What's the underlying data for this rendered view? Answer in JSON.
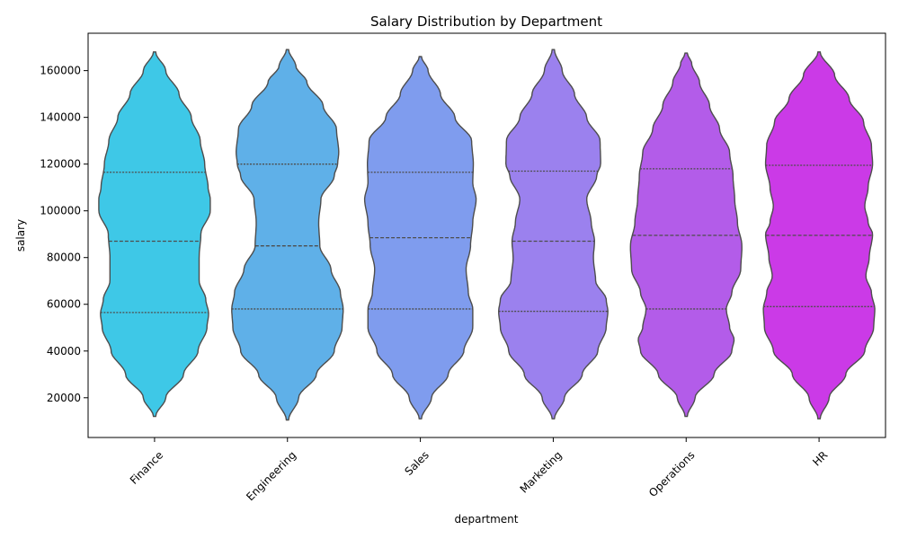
{
  "chart_data": {
    "type": "violin",
    "title": "Salary Distribution by Department",
    "xlabel": "department",
    "ylabel": "salary",
    "ylim": [
      3000,
      176000
    ],
    "yticks": [
      20000,
      40000,
      60000,
      80000,
      100000,
      120000,
      140000,
      160000
    ],
    "categories": [
      "Finance",
      "Engineering",
      "Sales",
      "Marketing",
      "Operations",
      "HR"
    ],
    "colors": [
      "#3ec8e7",
      "#5fb0e8",
      "#7f9cee",
      "#9b81ee",
      "#b35ce9",
      "#cb3ae7"
    ],
    "outline_color": "#4d4d4d",
    "inner": "quartile",
    "grid": false,
    "x_tick_rotation": 45,
    "violins": [
      {
        "name": "Finance",
        "range": [
          12000,
          168000
        ],
        "quartiles": [
          56500,
          87000,
          116500
        ],
        "profile": [
          [
            12000,
            0.02
          ],
          [
            20000,
            0.2
          ],
          [
            30000,
            0.52
          ],
          [
            40000,
            0.78
          ],
          [
            50000,
            0.94
          ],
          [
            56000,
            0.97
          ],
          [
            62000,
            0.92
          ],
          [
            70000,
            0.8
          ],
          [
            80000,
            0.8
          ],
          [
            90000,
            0.83
          ],
          [
            100000,
            1.0
          ],
          [
            105000,
            1.0
          ],
          [
            110000,
            0.96
          ],
          [
            120000,
            0.9
          ],
          [
            130000,
            0.82
          ],
          [
            140000,
            0.66
          ],
          [
            150000,
            0.44
          ],
          [
            160000,
            0.2
          ],
          [
            168000,
            0.02
          ]
        ]
      },
      {
        "name": "Engineering",
        "range": [
          10500,
          169000
        ],
        "quartiles": [
          58000,
          85000,
          120000
        ],
        "profile": [
          [
            10500,
            0.02
          ],
          [
            20000,
            0.2
          ],
          [
            30000,
            0.52
          ],
          [
            40000,
            0.84
          ],
          [
            50000,
            0.98
          ],
          [
            58000,
            1.0
          ],
          [
            65000,
            0.95
          ],
          [
            75000,
            0.78
          ],
          [
            85000,
            0.58
          ],
          [
            95000,
            0.56
          ],
          [
            105000,
            0.6
          ],
          [
            115000,
            0.84
          ],
          [
            120000,
            0.9
          ],
          [
            125000,
            0.92
          ],
          [
            135000,
            0.88
          ],
          [
            145000,
            0.64
          ],
          [
            155000,
            0.35
          ],
          [
            162000,
            0.15
          ],
          [
            169000,
            0.02
          ]
        ]
      },
      {
        "name": "Sales",
        "range": [
          11000,
          166000
        ],
        "quartiles": [
          58000,
          88500,
          116500
        ],
        "profile": [
          [
            11000,
            0.02
          ],
          [
            20000,
            0.2
          ],
          [
            30000,
            0.5
          ],
          [
            40000,
            0.78
          ],
          [
            50000,
            0.94
          ],
          [
            58000,
            0.94
          ],
          [
            65000,
            0.86
          ],
          [
            75000,
            0.82
          ],
          [
            85000,
            0.9
          ],
          [
            95000,
            0.94
          ],
          [
            105000,
            1.0
          ],
          [
            112000,
            0.94
          ],
          [
            120000,
            0.95
          ],
          [
            130000,
            0.92
          ],
          [
            140000,
            0.62
          ],
          [
            150000,
            0.36
          ],
          [
            160000,
            0.14
          ],
          [
            166000,
            0.02
          ]
        ]
      },
      {
        "name": "Marketing",
        "range": [
          11000,
          169000
        ],
        "quartiles": [
          57000,
          87000,
          117000
        ],
        "profile": [
          [
            11000,
            0.02
          ],
          [
            20000,
            0.2
          ],
          [
            30000,
            0.52
          ],
          [
            40000,
            0.8
          ],
          [
            50000,
            0.95
          ],
          [
            57000,
            0.98
          ],
          [
            62000,
            0.95
          ],
          [
            70000,
            0.76
          ],
          [
            80000,
            0.72
          ],
          [
            87000,
            0.74
          ],
          [
            95000,
            0.68
          ],
          [
            105000,
            0.6
          ],
          [
            115000,
            0.78
          ],
          [
            120000,
            0.85
          ],
          [
            130000,
            0.84
          ],
          [
            140000,
            0.6
          ],
          [
            150000,
            0.38
          ],
          [
            160000,
            0.16
          ],
          [
            169000,
            0.02
          ]
        ]
      },
      {
        "name": "Operations",
        "range": [
          12000,
          167500
        ],
        "quartiles": [
          58000,
          89500,
          118000
        ],
        "profile": [
          [
            12000,
            0.02
          ],
          [
            20000,
            0.16
          ],
          [
            30000,
            0.5
          ],
          [
            40000,
            0.82
          ],
          [
            45000,
            0.86
          ],
          [
            50000,
            0.78
          ],
          [
            58000,
            0.72
          ],
          [
            65000,
            0.82
          ],
          [
            75000,
            0.98
          ],
          [
            85000,
            1.0
          ],
          [
            95000,
            0.92
          ],
          [
            105000,
            0.87
          ],
          [
            115000,
            0.84
          ],
          [
            125000,
            0.78
          ],
          [
            135000,
            0.6
          ],
          [
            145000,
            0.42
          ],
          [
            155000,
            0.24
          ],
          [
            163000,
            0.1
          ],
          [
            167500,
            0.02
          ]
        ]
      },
      {
        "name": "HR",
        "range": [
          11000,
          168000
        ],
        "quartiles": [
          59000,
          89500,
          119500
        ],
        "profile": [
          [
            11000,
            0.02
          ],
          [
            20000,
            0.18
          ],
          [
            30000,
            0.48
          ],
          [
            40000,
            0.82
          ],
          [
            50000,
            0.98
          ],
          [
            58000,
            1.0
          ],
          [
            65000,
            0.94
          ],
          [
            72000,
            0.84
          ],
          [
            80000,
            0.9
          ],
          [
            90000,
            0.96
          ],
          [
            95000,
            0.88
          ],
          [
            102000,
            0.82
          ],
          [
            110000,
            0.88
          ],
          [
            120000,
            0.96
          ],
          [
            128000,
            0.94
          ],
          [
            138000,
            0.8
          ],
          [
            148000,
            0.54
          ],
          [
            158000,
            0.28
          ],
          [
            168000,
            0.02
          ]
        ]
      }
    ]
  }
}
